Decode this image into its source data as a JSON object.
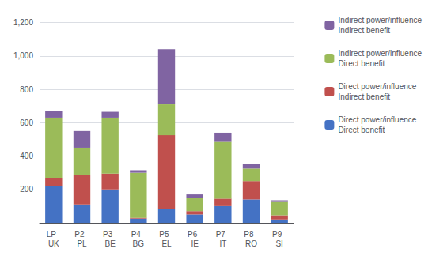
{
  "chart_data": {
    "type": "bar",
    "stacked": true,
    "grid": true,
    "legend": "right",
    "categories": [
      "LP -\nUK",
      "P2 -\nPL",
      "P3 -\nBE",
      "P4 -\nBG",
      "P5 -\nEL",
      "P6 -\nIE",
      "P7 -\nIT",
      "P8 -\nRO",
      "P9 -\nSI"
    ],
    "series": [
      {
        "name": "Direct power/influence\nDirect benefit",
        "color": "#4472C4",
        "values": [
          220,
          110,
          200,
          25,
          85,
          50,
          100,
          140,
          20
        ]
      },
      {
        "name": "Direct power/influence\nIndirect benefit",
        "color": "#C0504D",
        "values": [
          50,
          175,
          95,
          5,
          440,
          20,
          45,
          110,
          25
        ]
      },
      {
        "name": "Indirect power/influence\nDirect benefit",
        "color": "#9BBB59",
        "values": [
          360,
          165,
          335,
          270,
          185,
          80,
          340,
          75,
          80
        ]
      },
      {
        "name": "Indirect power/influence\nIndirect benefit",
        "color": "#8064A2",
        "values": [
          40,
          100,
          35,
          15,
          330,
          20,
          55,
          30,
          10
        ]
      }
    ],
    "ylim": [
      0,
      1250
    ],
    "yticks": [
      {
        "value": 0,
        "label": "-"
      },
      200,
      400,
      600,
      800,
      {
        "value": 1000,
        "label": "1,000"
      },
      {
        "value": 1200,
        "label": "1,200"
      }
    ]
  }
}
